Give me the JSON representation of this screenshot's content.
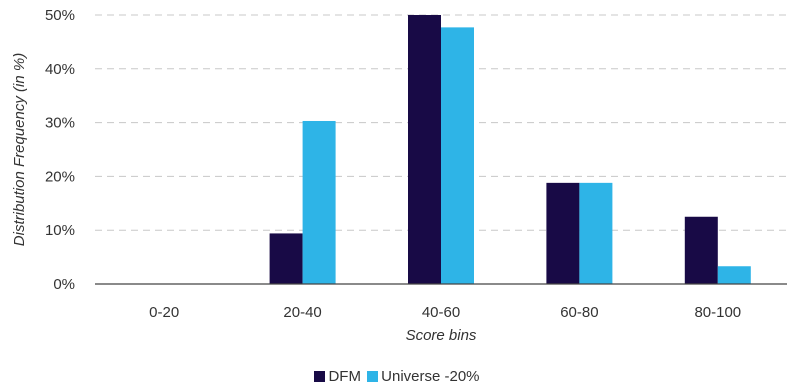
{
  "chart_data": {
    "type": "bar",
    "xlabel": "Score bins",
    "ylabel": "Distribution Frequency (in %)",
    "categories": [
      "0-20",
      "20-40",
      "40-60",
      "60-80",
      "80-100"
    ],
    "series": [
      {
        "name": "DFM",
        "values": [
          0,
          9.4,
          50,
          18.8,
          12.5
        ],
        "color": "#180a46"
      },
      {
        "name": "Universe -20%",
        "values": [
          0,
          30.3,
          47.7,
          18.8,
          3.3
        ],
        "color": "#2eb4e7"
      }
    ],
    "ylim": [
      0,
      50
    ],
    "yticks": [
      "0%",
      "10%",
      "20%",
      "30%",
      "40%",
      "50%"
    ],
    "grid": true,
    "legend_position": "bottom-center"
  }
}
